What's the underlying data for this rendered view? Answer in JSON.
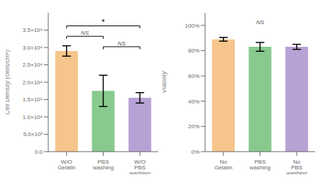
{
  "chart_data": [
    {
      "type": "bar",
      "categories": [
        "W/O Gelatin",
        "PBS washing",
        "W/O PBS washing"
      ],
      "values": [
        29000,
        17500,
        15500
      ],
      "errors": [
        1500,
        4500,
        1500
      ],
      "colors": [
        "#F5C58C",
        "#88CA8E",
        "#B8A2D5"
      ],
      "ylabel": "Cell Density (cells/cm²)",
      "ylim": [
        0,
        40000
      ],
      "yticks": [
        {
          "value": 0,
          "label": "0.0"
        },
        {
          "value": 5000,
          "label": "5.0×10³"
        },
        {
          "value": 10000,
          "label": "1.0×10⁴"
        },
        {
          "value": 15000,
          "label": "1.5×10⁴"
        },
        {
          "value": 20000,
          "label": "2.0×10⁴"
        },
        {
          "value": 25000,
          "label": "2.5×10⁴"
        },
        {
          "value": 30000,
          "label": "3.0×10⁴"
        },
        {
          "value": 35000,
          "label": "3.5×10⁴"
        }
      ],
      "annotations": [
        {
          "text": "*",
          "x1": "W/O Gelatin",
          "x2": "W/O PBS washing",
          "y": 35500,
          "bracket": true
        },
        {
          "text": "NS",
          "x1": "W/O Gelatin",
          "x2": "PBS washing",
          "y": 32500,
          "bracket": true
        },
        {
          "text": "NS",
          "x1": "PBS washing",
          "x2": "W/O PBS washing",
          "y": 29500,
          "bracket": true
        }
      ]
    },
    {
      "type": "bar",
      "categories": [
        "No Gelatin",
        "PBS washing",
        "No PBS washing"
      ],
      "values": [
        89,
        83,
        83
      ],
      "errors": [
        1.5,
        3.5,
        2.0
      ],
      "colors": [
        "#F5C58C",
        "#88CA8E",
        "#B8A2D5"
      ],
      "ylabel": "Viability",
      "ylim": [
        0,
        110
      ],
      "yticks": [
        {
          "value": 0,
          "label": "0%"
        },
        {
          "value": 20,
          "label": "20%"
        },
        {
          "value": 40,
          "label": "40%"
        },
        {
          "value": 60,
          "label": "60%"
        },
        {
          "value": 80,
          "label": "80%"
        },
        {
          "value": 100,
          "label": "100%"
        }
      ],
      "annotations": [
        {
          "text": "NS",
          "x1": "PBS washing",
          "x2": "PBS washing",
          "y": 100,
          "bracket": false
        }
      ]
    }
  ]
}
